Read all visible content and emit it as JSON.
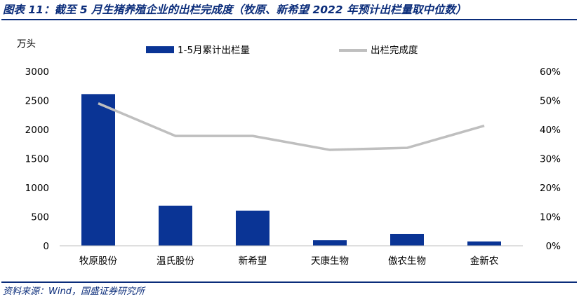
{
  "title": "图表 11：截至 5 月生猪养殖企业的出栏完成度（牧原、新希望 2022 年预计出栏量取中位数）",
  "source": "资料来源：Wind，国盛证券研究所",
  "colors": {
    "bar": "#0a3495",
    "line": "#bfbfbf",
    "accent": "#0a2c7a"
  },
  "chart_data": {
    "type": "bar",
    "unit_label": "万头",
    "categories": [
      "牧原股份",
      "温氏股份",
      "新希望",
      "天康生物",
      "傲农生物",
      "金新农"
    ],
    "series": [
      {
        "name": "1-5月累计出栏量",
        "type": "bar",
        "axis": "left",
        "values": [
          2610,
          690,
          605,
          95,
          205,
          75
        ]
      },
      {
        "name": "出栏完成度",
        "type": "line",
        "axis": "right",
        "values": [
          49.0,
          37.8,
          37.8,
          33.0,
          33.7,
          41.3
        ]
      }
    ],
    "left_axis": {
      "ylim": [
        0,
        3000
      ],
      "ticks": [
        "0",
        "500",
        "1000",
        "1500",
        "2000",
        "2500",
        "3000"
      ]
    },
    "right_axis": {
      "ylim": [
        0,
        60
      ],
      "ticks": [
        "0%",
        "10%",
        "20%",
        "30%",
        "40%",
        "50%",
        "60%"
      ]
    },
    "legend": "top",
    "grid": false
  }
}
